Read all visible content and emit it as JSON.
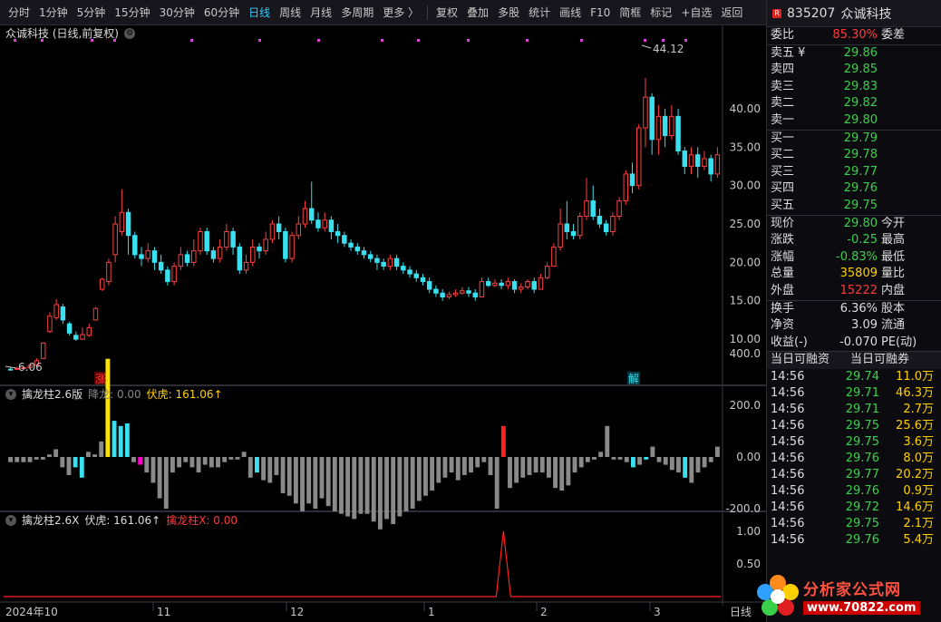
{
  "toolbar": {
    "periods": [
      "分时",
      "1分钟",
      "5分钟",
      "15分钟",
      "30分钟",
      "60分钟",
      "日线",
      "周线",
      "月线",
      "多周期",
      "更多 〉"
    ],
    "active_period": "日线",
    "tools": [
      "复权",
      "叠加",
      "多股",
      "统计",
      "画线",
      "F10",
      "简框",
      "标记",
      "+自选",
      "返回"
    ]
  },
  "main_panel": {
    "title": "众诚科技 (日线,前复权)",
    "price_axis": [
      "40.00",
      "35.00",
      "30.00",
      "25.00",
      "20.00",
      "15.00",
      "10.00"
    ],
    "high_label": "44.12",
    "low_label": "6.06",
    "marker_zhang": "涨",
    "marker_jie": "解"
  },
  "ind1": {
    "name": "擒龙柱2.6版",
    "label1": "降龙: 0.00",
    "label2": "伏虎: 161.06↑",
    "axis": [
      "400.0",
      "200.0",
      "0.00",
      "-200.0"
    ]
  },
  "ind2": {
    "name": "擒龙柱2.6X",
    "label1": "伏虎: 161.06↑",
    "label2": "擒龙柱X: 0.00",
    "axis": [
      "1.00",
      "0.50"
    ]
  },
  "x_axis": [
    "2024年10",
    "11",
    "12",
    "1",
    "2",
    "3",
    "日线"
  ],
  "chart_data": {
    "type": "candlestick",
    "candles": [
      [
        6.1,
        6.0,
        6.3,
        5.9
      ],
      [
        6.1,
        6.2,
        6.4,
        6.0
      ],
      [
        6.2,
        6.3,
        6.5,
        6.1
      ],
      [
        6.3,
        6.6,
        6.8,
        6.2
      ],
      [
        6.6,
        7.2,
        7.5,
        6.5
      ],
      [
        7.5,
        9.5,
        9.6,
        7.4
      ],
      [
        11.0,
        13.0,
        13.5,
        10.8
      ],
      [
        12.8,
        14.5,
        15.2,
        12.5
      ],
      [
        14.2,
        12.5,
        14.6,
        12.0
      ],
      [
        12.0,
        10.8,
        12.3,
        10.5
      ],
      [
        10.5,
        10.0,
        11.0,
        9.8
      ],
      [
        10.0,
        10.6,
        11.5,
        9.9
      ],
      [
        10.5,
        11.5,
        12.0,
        10.3
      ],
      [
        12.5,
        14.0,
        14.2,
        12.4
      ],
      [
        16.5,
        17.8,
        18.0,
        16.3
      ],
      [
        17.5,
        20.0,
        20.5,
        17.0
      ],
      [
        21.0,
        25.0,
        26.0,
        20.0
      ],
      [
        24.0,
        26.5,
        29.5,
        23.5
      ],
      [
        26.5,
        23.5,
        27.0,
        21.0
      ],
      [
        23.5,
        21.0,
        24.0,
        20.5
      ],
      [
        21.0,
        20.5,
        22.0,
        19.5
      ],
      [
        20.5,
        21.5,
        22.5,
        20.0
      ],
      [
        21.5,
        20.0,
        22.0,
        19.0
      ],
      [
        20.0,
        19.0,
        21.0,
        18.5
      ],
      [
        19.0,
        17.5,
        19.5,
        17.0
      ],
      [
        17.5,
        19.5,
        20.0,
        17.0
      ],
      [
        19.5,
        21.0,
        22.0,
        19.0
      ],
      [
        21.0,
        20.0,
        21.5,
        19.5
      ],
      [
        20.0,
        21.5,
        23.0,
        19.5
      ],
      [
        21.5,
        24.0,
        24.5,
        21.0
      ],
      [
        24.0,
        21.5,
        24.5,
        21.0
      ],
      [
        21.5,
        20.5,
        22.0,
        20.0
      ],
      [
        20.5,
        22.0,
        23.0,
        20.0
      ],
      [
        22.0,
        24.0,
        25.0,
        21.5
      ],
      [
        24.0,
        22.0,
        24.5,
        21.0
      ],
      [
        22.0,
        19.0,
        22.5,
        18.5
      ],
      [
        19.0,
        20.0,
        21.0,
        18.5
      ],
      [
        20.0,
        22.0,
        23.0,
        19.5
      ],
      [
        22.0,
        21.5,
        22.5,
        20.5
      ],
      [
        21.5,
        23.0,
        24.0,
        21.0
      ],
      [
        23.0,
        25.0,
        25.5,
        22.5
      ],
      [
        25.0,
        24.0,
        26.0,
        23.0
      ],
      [
        24.0,
        20.5,
        24.5,
        20.0
      ],
      [
        20.5,
        23.5,
        24.0,
        20.0
      ],
      [
        23.5,
        25.0,
        26.0,
        23.0
      ],
      [
        25.0,
        27.0,
        28.0,
        24.5
      ],
      [
        27.0,
        25.5,
        30.5,
        25.0
      ],
      [
        25.5,
        24.5,
        26.5,
        24.0
      ],
      [
        24.5,
        25.5,
        26.5,
        24.0
      ],
      [
        25.5,
        24.0,
        26.0,
        23.0
      ],
      [
        24.0,
        23.5,
        25.0,
        22.5
      ],
      [
        23.5,
        22.5,
        24.0,
        22.0
      ],
      [
        22.5,
        22.0,
        23.0,
        21.5
      ],
      [
        22.0,
        21.5,
        22.5,
        21.0
      ],
      [
        21.5,
        21.0,
        22.0,
        20.5
      ],
      [
        21.0,
        20.5,
        21.5,
        20.0
      ],
      [
        20.5,
        20.0,
        21.0,
        19.0
      ],
      [
        20.0,
        19.5,
        20.5,
        19.0
      ],
      [
        19.5,
        20.5,
        21.0,
        19.0
      ],
      [
        20.5,
        19.5,
        21.0,
        19.0
      ],
      [
        19.5,
        19.0,
        20.0,
        18.5
      ],
      [
        19.0,
        18.5,
        19.5,
        18.0
      ],
      [
        18.5,
        18.0,
        19.0,
        17.5
      ],
      [
        18.0,
        17.5,
        18.5,
        17.0
      ],
      [
        17.5,
        16.5,
        18.0,
        16.0
      ],
      [
        16.5,
        16.0,
        17.0,
        15.5
      ],
      [
        16.0,
        15.5,
        16.5,
        15.0
      ],
      [
        15.5,
        15.8,
        16.2,
        15.2
      ],
      [
        15.8,
        16.0,
        16.5,
        15.5
      ],
      [
        16.0,
        16.3,
        16.8,
        15.8
      ],
      [
        16.3,
        16.0,
        16.8,
        15.5
      ],
      [
        16.0,
        15.5,
        16.5,
        15.0
      ],
      [
        15.5,
        17.5,
        18.0,
        15.5
      ],
      [
        17.5,
        17.0,
        18.0,
        16.8
      ],
      [
        17.0,
        17.3,
        17.8,
        16.8
      ],
      [
        17.3,
        17.0,
        17.8,
        16.5
      ],
      [
        17.0,
        17.5,
        18.0,
        16.5
      ],
      [
        17.5,
        16.5,
        17.8,
        16.0
      ],
      [
        16.5,
        16.8,
        17.3,
        16.0
      ],
      [
        16.8,
        17.5,
        17.8,
        16.5
      ],
      [
        17.5,
        16.5,
        18.0,
        16.0
      ],
      [
        16.5,
        18.0,
        18.5,
        16.5
      ],
      [
        18.0,
        19.5,
        20.0,
        17.8
      ],
      [
        19.5,
        22.0,
        22.5,
        19.5
      ],
      [
        22.0,
        25.0,
        27.0,
        21.5
      ],
      [
        25.0,
        24.0,
        28.0,
        23.0
      ],
      [
        24.0,
        23.5,
        25.0,
        23.0
      ],
      [
        23.5,
        26.0,
        26.5,
        23.0
      ],
      [
        26.0,
        28.0,
        31.0,
        25.5
      ],
      [
        28.0,
        26.0,
        30.0,
        25.5
      ],
      [
        26.0,
        25.0,
        27.0,
        24.5
      ],
      [
        25.0,
        24.0,
        25.5,
        23.5
      ],
      [
        24.0,
        26.0,
        26.5,
        23.5
      ],
      [
        26.0,
        28.0,
        28.5,
        25.5
      ],
      [
        28.0,
        31.5,
        32.0,
        27.5
      ],
      [
        31.5,
        30.0,
        33.0,
        29.0
      ],
      [
        30.0,
        37.5,
        38.0,
        29.5
      ],
      [
        37.5,
        41.5,
        44.0,
        35.0
      ],
      [
        41.5,
        36.0,
        42.0,
        34.0
      ],
      [
        36.0,
        39.0,
        40.5,
        34.0
      ],
      [
        39.0,
        36.5,
        40.0,
        35.0
      ],
      [
        36.5,
        39.0,
        40.5,
        36.0
      ],
      [
        39.0,
        34.5,
        40.0,
        34.0
      ],
      [
        34.5,
        32.5,
        35.0,
        31.5
      ],
      [
        32.5,
        34.0,
        35.0,
        31.5
      ],
      [
        34.0,
        32.5,
        35.0,
        31.0
      ],
      [
        32.5,
        33.5,
        34.5,
        32.0
      ],
      [
        33.5,
        31.5,
        34.0,
        30.5
      ],
      [
        31.5,
        34.0,
        35.0,
        31.0
      ]
    ],
    "ind1_values": [
      -20,
      -20,
      -20,
      -20,
      -10,
      -10,
      10,
      30,
      -40,
      -70,
      -40,
      -80,
      20,
      10,
      60,
      380,
      140,
      120,
      130,
      -20,
      -30,
      -60,
      -100,
      -160,
      -200,
      -60,
      -40,
      -20,
      -40,
      -60,
      -30,
      -40,
      -40,
      -20,
      -10,
      -10,
      20,
      -80,
      -60,
      -90,
      -100,
      -70,
      -140,
      -150,
      -180,
      -210,
      -180,
      -200,
      -160,
      -190,
      -210,
      -220,
      -230,
      -240,
      -220,
      -220,
      -250,
      -280,
      -240,
      -260,
      -230,
      -210,
      -200,
      -170,
      -150,
      -130,
      -100,
      -80,
      -60,
      -90,
      -70,
      -60,
      -40,
      -20,
      -70,
      -200,
      120,
      -120,
      -100,
      -80,
      -70,
      -60,
      -60,
      -80,
      -120,
      -130,
      -110,
      -60,
      -40,
      -20,
      -10,
      20,
      120,
      -10,
      -10,
      -20,
      -40,
      -30,
      -10,
      40,
      -20,
      -30,
      -50,
      -60,
      -80,
      -100,
      -60,
      -40,
      -20,
      40
    ],
    "ind1_colors": {
      "20": "#ff00c8",
      "15": "#ffe400",
      "76": "#ff2020"
    },
    "ind2_spike_index": 76
  },
  "sidebar": {
    "code": "835207",
    "name": "众诚科技",
    "weibi_label": "委比",
    "weibi_value": "85.30%",
    "weicha_label": "委差",
    "asks": [
      {
        "label": "卖五 ¥",
        "price": "29.86"
      },
      {
        "label": "卖四",
        "price": "29.85"
      },
      {
        "label": "卖三",
        "price": "29.83"
      },
      {
        "label": "卖二",
        "price": "29.82"
      },
      {
        "label": "卖一",
        "price": "29.80"
      }
    ],
    "bids": [
      {
        "label": "买一",
        "price": "29.79"
      },
      {
        "label": "买二",
        "price": "29.78"
      },
      {
        "label": "买三",
        "price": "29.77"
      },
      {
        "label": "买四",
        "price": "29.76"
      },
      {
        "label": "买五",
        "price": "29.75"
      }
    ],
    "quote": [
      {
        "l": "现价",
        "v": "29.80",
        "c": "green",
        "r": "今开"
      },
      {
        "l": "涨跌",
        "v": "-0.25",
        "c": "green",
        "r": "最高"
      },
      {
        "l": "涨幅",
        "v": "-0.83%",
        "c": "green",
        "r": "最低"
      },
      {
        "l": "总量",
        "v": "35809",
        "c": "yellow",
        "r": "量比"
      },
      {
        "l": "外盘",
        "v": "15222",
        "c": "red",
        "r": "内盘"
      }
    ],
    "stats": [
      {
        "l": "换手",
        "v": "6.36%",
        "r": "股本"
      },
      {
        "l": "净资",
        "v": "3.09",
        "r": "流通"
      },
      {
        "l": "收益(-)",
        "v": "-0.070",
        "r": "PE(动)"
      }
    ],
    "margin_header": [
      "当日可融资",
      "当日可融券"
    ],
    "ticks": [
      {
        "t": "14:56",
        "p": "29.74",
        "v": "11.0万"
      },
      {
        "t": "14:56",
        "p": "29.71",
        "v": "46.3万"
      },
      {
        "t": "14:56",
        "p": "29.71",
        "v": "2.7万"
      },
      {
        "t": "14:56",
        "p": "29.75",
        "v": "25.6万"
      },
      {
        "t": "14:56",
        "p": "29.75",
        "v": "3.6万"
      },
      {
        "t": "14:56",
        "p": "29.76",
        "v": "8.0万"
      },
      {
        "t": "14:56",
        "p": "29.77",
        "v": "20.2万"
      },
      {
        "t": "14:56",
        "p": "29.76",
        "v": "0.9万"
      },
      {
        "t": "14:56",
        "p": "29.72",
        "v": "14.6万"
      },
      {
        "t": "14:56",
        "p": "29.75",
        "v": "2.1万"
      },
      {
        "t": "14:56",
        "p": "29.76",
        "v": "5.4万"
      }
    ],
    "logo_text": "分析家公式网",
    "logo_url": "www.70822.com"
  }
}
